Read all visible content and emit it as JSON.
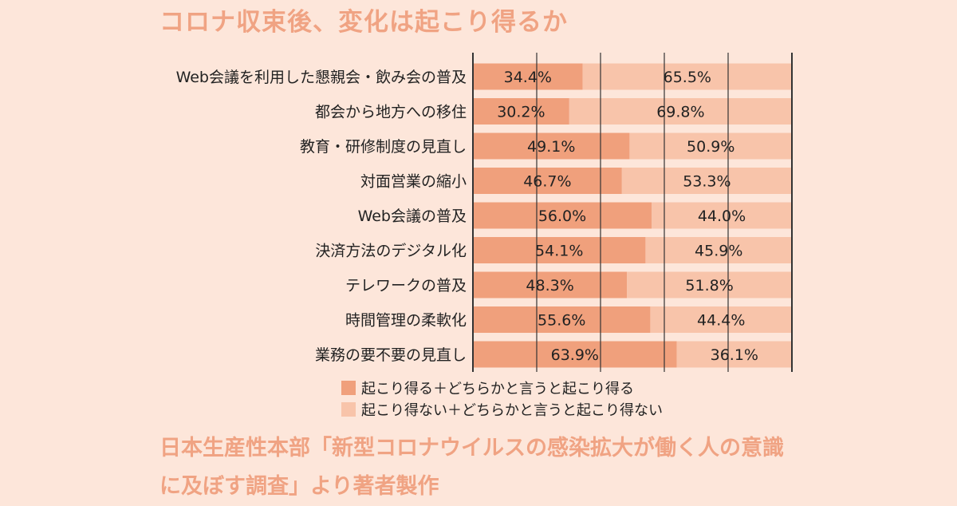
{
  "title": "コロナ収束後、変化は起こり得るか",
  "source": {
    "line1": "日本生産性本部「新型コロナウイルスの感染拡大が働く人の意識",
    "line2": "に及ぼす調査」より著者製作"
  },
  "colors": {
    "background": "#fde6da",
    "series_likely": "#f0a07c",
    "series_unlikely": "#f8c4aa",
    "accent_text": "#f0a383"
  },
  "chart_data": {
    "type": "bar",
    "orientation": "horizontal",
    "stacked": true,
    "percent_stacked": true,
    "grid": true,
    "legend_position": "bottom",
    "xlim": [
      0,
      100
    ],
    "categories": [
      "Web会議を利用した懇親会・飲み会の普及",
      "都会から地方への移住",
      "教育・研修制度の見直し",
      "対面営業の縮小",
      "Web会議の普及",
      "決済方法のデジタル化",
      "テレワークの普及",
      "時間管理の柔軟化",
      "業務の要不要の見直し"
    ],
    "series": [
      {
        "name": "起こり得る＋どちらかと言うと起こり得る",
        "color": "#f0a07c",
        "values": [
          34.4,
          30.2,
          49.1,
          46.7,
          56.0,
          54.1,
          48.3,
          55.6,
          63.9
        ],
        "labels": [
          "34.4%",
          "30.2%",
          "49.1%",
          "46.7%",
          "56.0%",
          "54.1%",
          "48.3%",
          "55.6%",
          "63.9%"
        ]
      },
      {
        "name": "起こり得ない＋どちらかと言うと起こり得ない",
        "color": "#f8c4aa",
        "values": [
          65.5,
          69.8,
          50.9,
          53.3,
          44.0,
          45.9,
          51.8,
          44.4,
          36.1
        ],
        "labels": [
          "65.5%",
          "69.8%",
          "50.9%",
          "53.3%",
          "44.0%",
          "45.9%",
          "51.8%",
          "44.4%",
          "36.1%"
        ]
      }
    ]
  }
}
